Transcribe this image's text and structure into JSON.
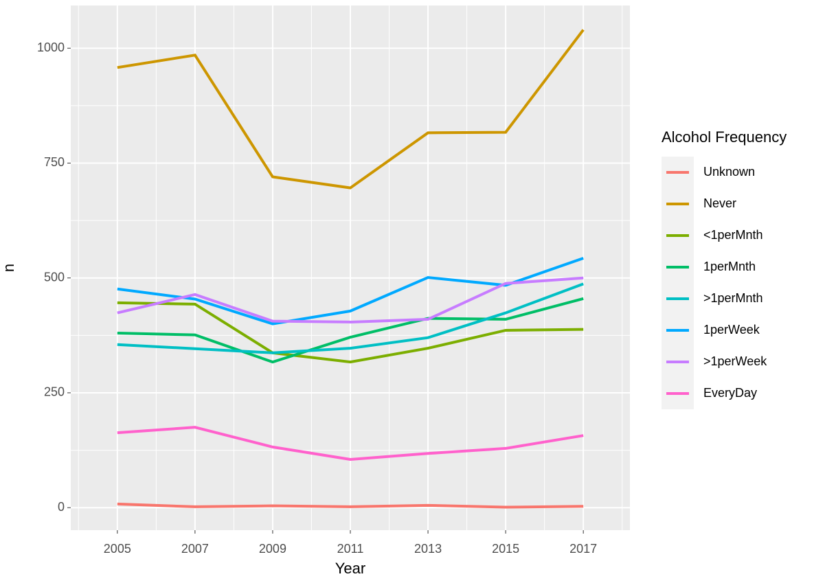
{
  "chart_data": {
    "type": "line",
    "x_label": "Year",
    "y_label": "n",
    "legend_title": "Alcohol Frequency",
    "x": [
      2005,
      2007,
      2009,
      2011,
      2013,
      2015,
      2017
    ],
    "series": [
      {
        "name": "Unknown",
        "color": "#F8766D",
        "values": [
          8,
          2,
          4,
          2,
          5,
          1,
          3
        ]
      },
      {
        "name": "Never",
        "color": "#CD9600",
        "values": [
          958,
          985,
          720,
          696,
          816,
          817,
          1040
        ]
      },
      {
        "name": "<1perMnth",
        "color": "#7CAE00",
        "values": [
          446,
          443,
          337,
          317,
          347,
          386,
          388
        ]
      },
      {
        "name": "1perMnth",
        "color": "#00BE67",
        "values": [
          380,
          376,
          317,
          371,
          412,
          410,
          455
        ]
      },
      {
        "name": ">1perMnth",
        "color": "#00BFC4",
        "values": [
          355,
          346,
          337,
          347,
          370,
          424,
          487
        ]
      },
      {
        "name": "1perWeek",
        "color": "#00A9FF",
        "values": [
          476,
          454,
          400,
          428,
          501,
          484,
          543
        ]
      },
      {
        "name": ">1perWeek",
        "color": "#C77CFF",
        "values": [
          424,
          464,
          406,
          404,
          410,
          488,
          500
        ]
      },
      {
        "name": "EveryDay",
        "color": "#FF61CC",
        "values": [
          163,
          175,
          132,
          105,
          118,
          129,
          157
        ]
      }
    ],
    "xlim": [
      2003.8,
      2018.2
    ],
    "xticks": [
      2005,
      2007,
      2009,
      2011,
      2013,
      2015,
      2017
    ],
    "xminorticks": [
      2004,
      2006,
      2008,
      2010,
      2012,
      2014,
      2016,
      2018
    ],
    "ylim": [
      -49,
      1093
    ],
    "yticks": [
      0,
      250,
      500,
      750,
      1000
    ],
    "yminorticks": [
      125,
      375,
      625,
      875
    ],
    "grid": true,
    "legend_position": "right"
  }
}
